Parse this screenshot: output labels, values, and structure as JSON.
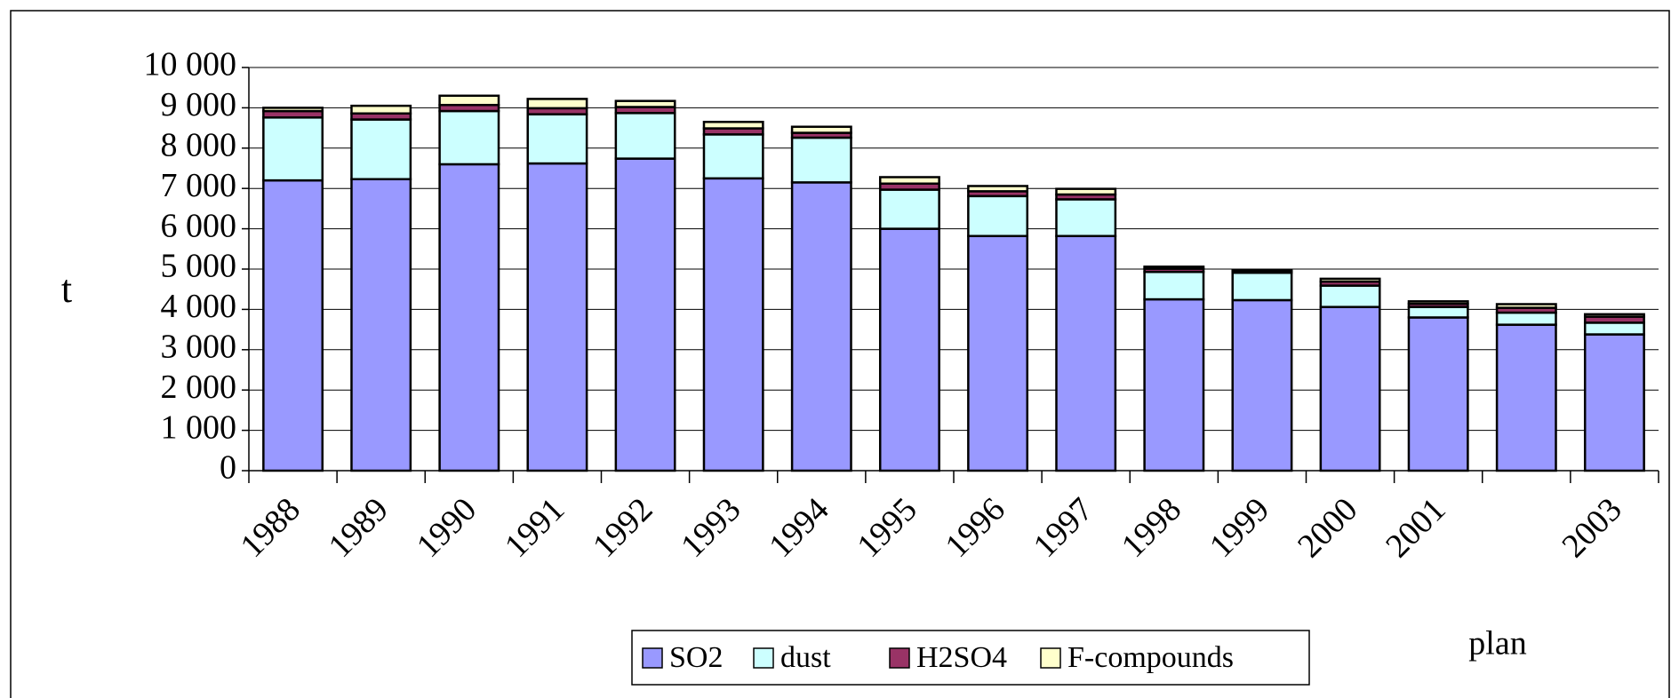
{
  "chart_data": {
    "type": "bar",
    "stacked": true,
    "ylabel": "t",
    "categories": [
      "1988",
      "1989",
      "1990",
      "1991",
      "1992",
      "1993",
      "1994",
      "1995",
      "1996",
      "1997",
      "1998",
      "1999",
      "2000",
      "2001",
      null,
      "2003"
    ],
    "series": [
      {
        "name": "SO2",
        "color": "#9999ff",
        "values": [
          7200,
          7230,
          7600,
          7620,
          7740,
          7250,
          7150,
          6000,
          5820,
          5820,
          4250,
          4230,
          4060,
          3800,
          3620,
          3380
        ]
      },
      {
        "name": "dust",
        "color": "#ccffff",
        "values": [
          1560,
          1480,
          1320,
          1220,
          1130,
          1090,
          1110,
          970,
          990,
          910,
          680,
          680,
          530,
          260,
          300,
          290
        ]
      },
      {
        "name": "H2SO4",
        "color": "#993366",
        "values": [
          160,
          150,
          150,
          150,
          150,
          150,
          120,
          150,
          120,
          120,
          80,
          40,
          100,
          80,
          120,
          150
        ]
      },
      {
        "name": "F-compounds",
        "color": "#ffffcc",
        "values": [
          80,
          190,
          230,
          230,
          150,
          160,
          150,
          160,
          130,
          140,
          50,
          30,
          70,
          60,
          90,
          60
        ]
      }
    ],
    "ylim": [
      0,
      10000
    ],
    "yticks": [
      0,
      {
        "value": 1000,
        "label": "1 000"
      },
      {
        "value": 2000,
        "label": "2 000"
      },
      {
        "value": 3000,
        "label": "3 000"
      },
      {
        "value": 4000,
        "label": "4 000"
      },
      {
        "value": 5000,
        "label": "5 000"
      },
      {
        "value": 6000,
        "label": "6 000"
      },
      {
        "value": 7000,
        "label": "7 000"
      },
      {
        "value": 8000,
        "label": "8 000"
      },
      {
        "value": 9000,
        "label": "9 000"
      },
      {
        "value": 10000,
        "label": "10 000"
      }
    ],
    "grid": true,
    "annotation": "plan",
    "legend": "bottom"
  }
}
